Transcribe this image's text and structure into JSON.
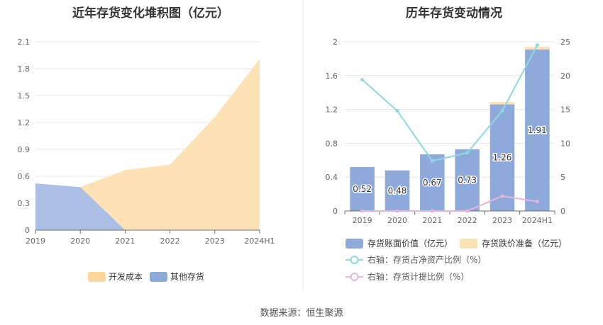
{
  "left_title": "近年存货变化堆积图（亿元）",
  "right_title": "历年存货变动情况",
  "source": "数据来源：恒生聚源",
  "chart_data": [
    {
      "type": "area",
      "title": "近年存货变化堆积图（亿元）",
      "categories": [
        "2019",
        "2020",
        "2021",
        "2022",
        "2023",
        "2024H1"
      ],
      "yticks": [
        "0",
        "0.3",
        "0.6",
        "0.9",
        "1.2",
        "1.5",
        "1.8",
        "2.1"
      ],
      "ylim": [
        0,
        2.1
      ],
      "stacked": true,
      "series": [
        {
          "name": "其他存货",
          "color": "#aabfe3",
          "legend_color": "#8eaadb",
          "values": [
            0.52,
            0.48,
            0,
            0,
            0,
            0
          ]
        },
        {
          "name": "开发成本",
          "color": "#fde2b5",
          "legend_color": "#fcd69a",
          "values": [
            0,
            0,
            0.67,
            0.73,
            1.26,
            1.91
          ]
        }
      ],
      "legend_position": "bottom"
    },
    {
      "type": "bar",
      "title": "历年存货变动情况",
      "categories": [
        "2019",
        "2020",
        "2021",
        "2022",
        "2023",
        "2024H1"
      ],
      "yticks_left": [
        "0",
        "0.4",
        "0.8",
        "1.2",
        "1.6",
        "2"
      ],
      "ylim_left": [
        0,
        2
      ],
      "yticks_right": [
        "0",
        "5",
        "10",
        "15",
        "20",
        "25"
      ],
      "ylim_right": [
        0,
        25
      ],
      "series": [
        {
          "name": "存货账面价值（亿元）",
          "type": "bar",
          "axis": "left",
          "color": "#8eaadb",
          "values": [
            0.52,
            0.48,
            0.67,
            0.73,
            1.26,
            1.91
          ],
          "labels": [
            "0.52",
            "0.48",
            "0.67",
            "0.73",
            "1.26",
            "1.91"
          ]
        },
        {
          "name": "存货跌价准备（亿元）",
          "type": "bar",
          "axis": "left",
          "stacked": true,
          "color": "#fde2b5",
          "values": [
            0,
            0,
            0,
            0,
            0.03,
            0.03
          ]
        },
        {
          "name": "右轴：存货占净资产比例（%）",
          "type": "line",
          "axis": "right",
          "color": "#8fd9de",
          "values": [
            19.4,
            14.8,
            7.4,
            8.6,
            14.8,
            24.5
          ]
        },
        {
          "name": "右轴：存货计提比例（%）",
          "type": "line",
          "axis": "right",
          "color": "#e8b4dc",
          "values": [
            0,
            0,
            0,
            0,
            2.2,
            1.4
          ]
        }
      ],
      "legend_position": "bottom"
    }
  ]
}
